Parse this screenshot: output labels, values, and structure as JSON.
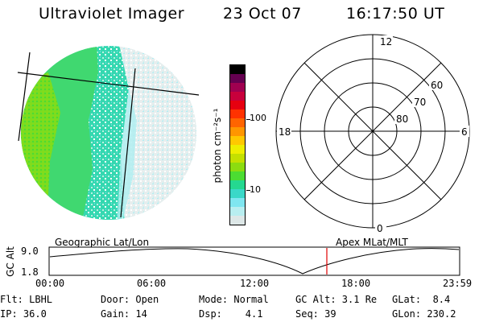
{
  "header": {
    "title": "Ultraviolet Imager",
    "date": "23 Oct 07",
    "time": "16:17:50 UT"
  },
  "colorbar": {
    "unit_label": "photon cm⁻²s⁻¹",
    "tick_100": "100",
    "tick_10": "10",
    "colors": [
      "#dde7e7",
      "#b8eef0",
      "#7fe6f0",
      "#3ad8c8",
      "#25d890",
      "#4cdc32",
      "#8cdc10",
      "#c4e000",
      "#eeee00",
      "#ffc800",
      "#ff9600",
      "#ff6400",
      "#ff3200",
      "#e60010",
      "#c8003c",
      "#a00050",
      "#640050",
      "#000000"
    ]
  },
  "polar_plot": {
    "mlt_labels": {
      "top": "12",
      "bottom": "0",
      "left": "18",
      "right": "6"
    },
    "lat_labels": [
      "60",
      "70",
      "80"
    ]
  },
  "timeline": {
    "left_label": "Geographic Lat/Lon",
    "right_label": "Apex MLat/MLT",
    "axis_title": "GC Alt",
    "y_max": "9.0",
    "y_min": "1.8",
    "x_ticks": [
      "00:00",
      "06:00",
      "12:00",
      "18:00",
      "23:59"
    ],
    "marker_color": "#e00000"
  },
  "status": {
    "row1": [
      {
        "name": "flt",
        "text": "Flt: LBHL"
      },
      {
        "name": "door",
        "text": "Door: Open"
      },
      {
        "name": "mode",
        "text": "Mode: Normal"
      },
      {
        "name": "gc-alt",
        "text": "GC Alt: 3.1 Re"
      },
      {
        "name": "glat",
        "text": "GLat:  8.4"
      }
    ],
    "row2": [
      {
        "name": "ip",
        "text": "IP: 36.0"
      },
      {
        "name": "gain",
        "text": "Gain: 14"
      },
      {
        "name": "dsp",
        "text": "Dsp:    4.1"
      },
      {
        "name": "seq",
        "text": "Seq: 39"
      },
      {
        "name": "glon",
        "text": "GLon: 230.2"
      }
    ]
  }
}
